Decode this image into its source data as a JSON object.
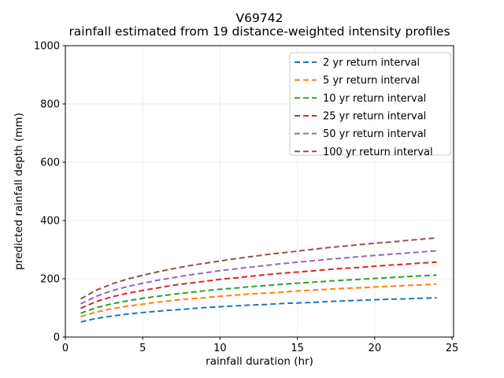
{
  "title": {
    "line1": "V69742",
    "line2": "rainfall estimated from 19 distance-weighted intensity profiles"
  },
  "chart_data": {
    "type": "line",
    "title": "V69742",
    "subtitle": "rainfall estimated from 19 distance-weighted intensity profiles",
    "xlabel": "rainfall duration (hr)",
    "ylabel": "predicted rainfall depth (mm)",
    "xlim": [
      0,
      25.1
    ],
    "ylim": [
      0,
      1000
    ],
    "xticks": [
      0,
      5,
      10,
      15,
      20,
      25
    ],
    "yticks": [
      0,
      200,
      400,
      600,
      800,
      1000
    ],
    "grid": true,
    "grid_color": "#ebebeb",
    "line_style": "dashed",
    "legend_position": "upper right",
    "x": [
      1,
      2,
      3,
      4,
      5,
      6,
      7,
      8,
      9,
      10,
      11,
      12,
      13,
      14,
      15,
      16,
      17,
      18,
      19,
      20,
      21,
      22,
      23,
      24
    ],
    "series": [
      {
        "name": "2 yr return interval",
        "color": "#1f77b4",
        "values": [
          52,
          64,
          72,
          79,
          84,
          89,
          93,
          97,
          101,
          104,
          107,
          110,
          112,
          115,
          117,
          119,
          122,
          124,
          126,
          128,
          130,
          131,
          133,
          135
        ]
      },
      {
        "name": "5 yr return interval",
        "color": "#ff7f0e",
        "values": [
          70,
          86,
          97,
          106,
          113,
          120,
          126,
          131,
          135,
          140,
          144,
          148,
          151,
          154,
          158,
          161,
          164,
          167,
          169,
          172,
          174,
          177,
          179,
          182
        ]
      },
      {
        "name": "10 yr return interval",
        "color": "#2ca02c",
        "values": [
          82,
          101,
          114,
          124,
          133,
          140,
          147,
          153,
          159,
          164,
          168,
          173,
          177,
          181,
          185,
          188,
          192,
          195,
          198,
          201,
          204,
          207,
          210,
          213
        ]
      },
      {
        "name": "25 yr return interval",
        "color": "#d62728",
        "values": [
          99,
          122,
          138,
          150,
          160,
          169,
          178,
          185,
          191,
          198,
          203,
          209,
          214,
          219,
          223,
          227,
          232,
          236,
          239,
          243,
          247,
          250,
          254,
          257
        ]
      },
      {
        "name": "50 yr return interval",
        "color": "#9467bd",
        "values": [
          114,
          140,
          159,
          173,
          185,
          195,
          204,
          213,
          220,
          228,
          234,
          240,
          246,
          252,
          257,
          262,
          267,
          271,
          276,
          280,
          284,
          288,
          292,
          296
        ]
      },
      {
        "name": "100 yr return interval",
        "color": "#8c564b",
        "values": [
          131,
          161,
          182,
          199,
          212,
          224,
          235,
          245,
          253,
          261,
          269,
          276,
          283,
          289,
          295,
          301,
          307,
          312,
          317,
          322,
          326,
          331,
          336,
          340
        ]
      }
    ]
  },
  "colors": {
    "spine": "#000000",
    "tick_label": "#000000",
    "legend_border": "#cccccc",
    "legend_background": "rgba(255,255,255,0.8)"
  }
}
